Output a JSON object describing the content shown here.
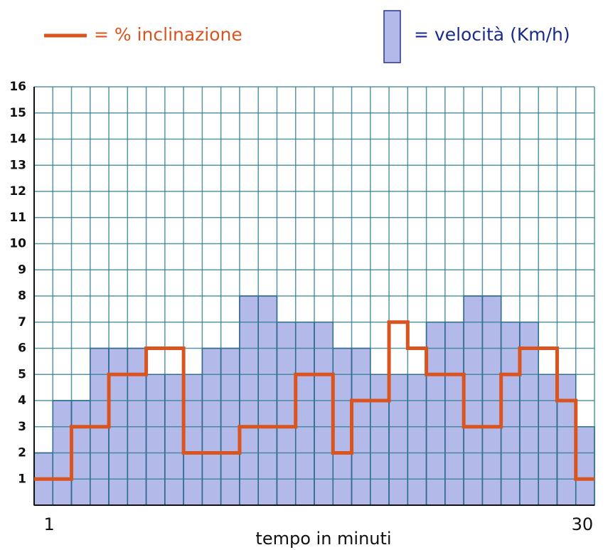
{
  "chart_data": {
    "type": "bar",
    "x_label": "tempo in minuti",
    "categories": [
      1,
      null,
      null,
      null,
      null,
      null,
      null,
      null,
      null,
      null,
      null,
      null,
      null,
      null,
      null,
      null,
      null,
      null,
      null,
      null,
      null,
      null,
      null,
      null,
      null,
      null,
      null,
      null,
      null,
      30
    ],
    "series": [
      {
        "name": "= velocità (Km/h)",
        "type": "bar",
        "color": "#b3b9e8",
        "values": [
          2,
          4,
          4,
          6,
          6,
          6,
          5,
          5,
          5,
          6,
          6,
          8,
          8,
          7,
          7,
          7,
          6,
          6,
          5,
          5,
          5,
          7,
          7,
          8,
          8,
          7,
          7,
          5,
          5,
          3
        ]
      },
      {
        "name": "= % inclinazione",
        "type": "step",
        "color": "#d9541e",
        "values": [
          1,
          1,
          3,
          3,
          5,
          5,
          6,
          6,
          2,
          2,
          2,
          3,
          3,
          3,
          5,
          5,
          2,
          4,
          4,
          7,
          6,
          5,
          5,
          3,
          3,
          5,
          6,
          6,
          4,
          1
        ]
      }
    ],
    "ylim": [
      0,
      16
    ],
    "yticks": [
      1,
      2,
      3,
      4,
      5,
      6,
      7,
      8,
      9,
      10,
      11,
      12,
      13,
      14,
      15,
      16
    ],
    "grid": true
  }
}
